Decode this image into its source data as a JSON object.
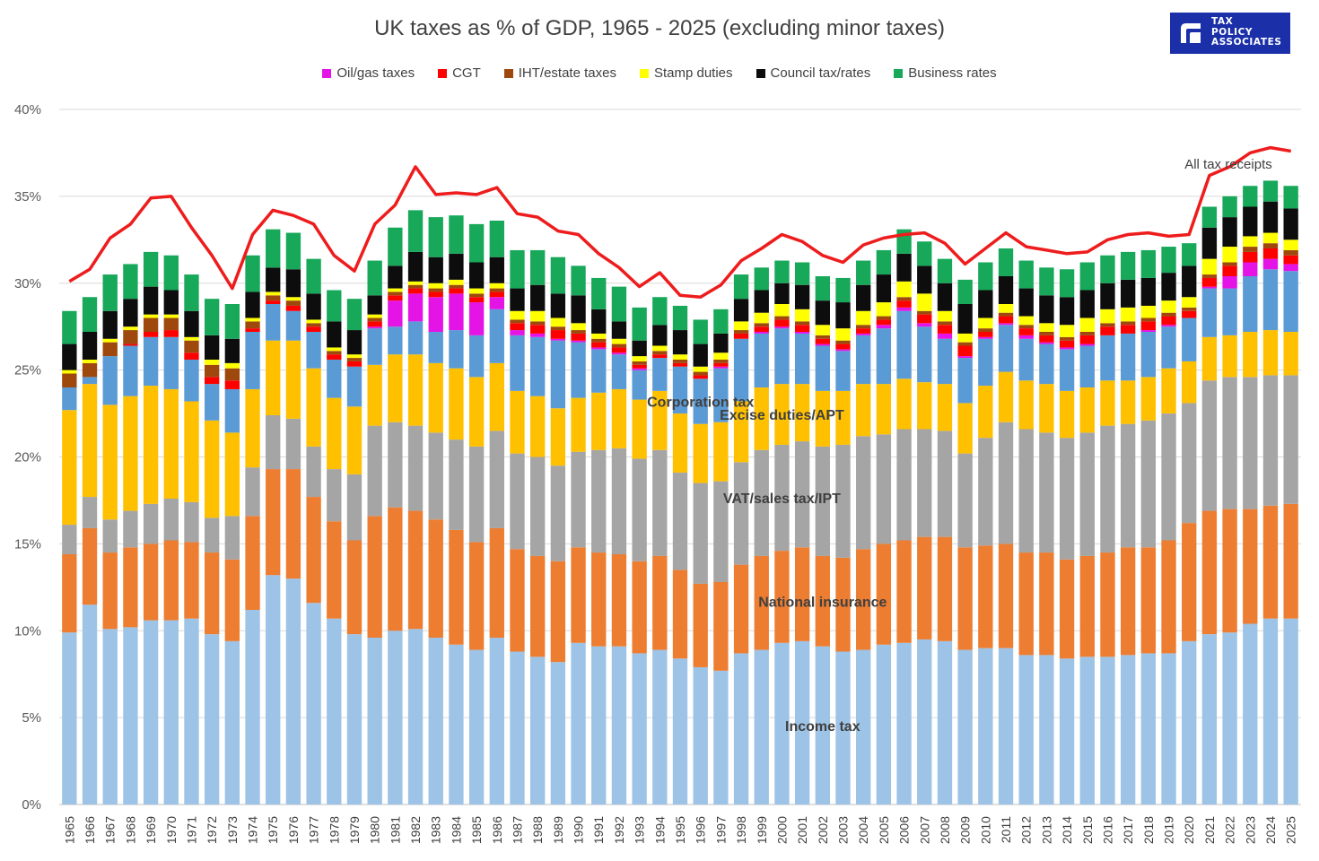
{
  "logo": {
    "lines": [
      "TAX",
      "POLICY",
      "ASSOCIATES"
    ]
  },
  "chart_data": {
    "type": "stacked-bar-with-line",
    "title": "UK taxes as % of GDP, 1965 - 2025 (excluding minor taxes)",
    "ylim": [
      0,
      40
    ],
    "yticks": [
      "0%",
      "5%",
      "10%",
      "15%",
      "20%",
      "25%",
      "30%",
      "35%",
      "40%"
    ],
    "grid": true,
    "legend_position": "top",
    "categories": [
      "1965",
      "1966",
      "1967",
      "1968",
      "1969",
      "1970",
      "1971",
      "1972",
      "1973",
      "1974",
      "1975",
      "1976",
      "1977",
      "1978",
      "1979",
      "1980",
      "1981",
      "1982",
      "1983",
      "1984",
      "1985",
      "1986",
      "1987",
      "1988",
      "1989",
      "1990",
      "1991",
      "1992",
      "1993",
      "1994",
      "1995",
      "1996",
      "1997",
      "1998",
      "1999",
      "2000",
      "2001",
      "2002",
      "2003",
      "2004",
      "2005",
      "2006",
      "2007",
      "2008",
      "2009",
      "2010",
      "2011",
      "2012",
      "2013",
      "2014",
      "2015",
      "2016",
      "2017",
      "2018",
      "2019",
      "2020",
      "2021",
      "2022",
      "2023",
      "2024",
      "2025"
    ],
    "series": [
      {
        "name": "Income tax",
        "color": "#9dc3e6",
        "in_legend": false,
        "values": [
          9.9,
          11.5,
          10.1,
          10.2,
          10.6,
          10.6,
          10.7,
          9.8,
          9.4,
          11.2,
          13.2,
          13.0,
          11.6,
          10.7,
          9.8,
          9.6,
          10.0,
          10.1,
          9.6,
          9.2,
          8.9,
          9.6,
          8.8,
          8.5,
          8.2,
          9.3,
          9.1,
          9.1,
          8.7,
          8.9,
          8.4,
          7.9,
          7.7,
          8.7,
          8.9,
          9.3,
          9.4,
          9.1,
          8.8,
          8.9,
          9.2,
          9.3,
          9.5,
          9.4,
          8.9,
          9.0,
          9.0,
          8.6,
          8.6,
          8.4,
          8.5,
          8.5,
          8.6,
          8.7,
          8.7,
          9.4,
          9.8,
          9.9,
          10.4,
          10.7,
          10.7
        ]
      },
      {
        "name": "National insurance",
        "color": "#ed7d31",
        "in_legend": false,
        "values": [
          4.5,
          4.4,
          4.4,
          4.6,
          4.4,
          4.6,
          4.4,
          4.7,
          4.7,
          5.4,
          6.1,
          6.3,
          6.1,
          5.6,
          5.4,
          7.0,
          7.1,
          6.8,
          6.8,
          6.6,
          6.2,
          6.3,
          5.9,
          5.8,
          5.8,
          5.5,
          5.4,
          5.3,
          5.3,
          5.4,
          5.1,
          4.8,
          5.1,
          5.1,
          5.4,
          5.3,
          5.4,
          5.2,
          5.4,
          5.8,
          5.8,
          5.9,
          5.9,
          6.0,
          5.9,
          5.9,
          6.0,
          5.9,
          5.9,
          5.7,
          5.8,
          6.0,
          6.2,
          6.1,
          6.5,
          6.8,
          7.1,
          7.1,
          6.6,
          6.5,
          6.6
        ]
      },
      {
        "name": "VAT/sales tax/IPT",
        "color": "#a5a5a5",
        "in_legend": false,
        "values": [
          1.7,
          1.8,
          1.9,
          2.1,
          2.3,
          2.4,
          2.3,
          2.0,
          2.5,
          2.8,
          3.1,
          2.9,
          2.9,
          3.0,
          3.8,
          5.2,
          4.9,
          4.9,
          5.0,
          5.2,
          5.5,
          5.6,
          5.5,
          5.7,
          5.5,
          5.5,
          5.9,
          6.1,
          5.9,
          6.1,
          5.6,
          5.8,
          5.8,
          5.9,
          6.1,
          6.1,
          6.1,
          6.3,
          6.5,
          6.5,
          6.3,
          6.4,
          6.2,
          6.1,
          5.4,
          6.2,
          7.0,
          7.1,
          6.9,
          7.0,
          7.1,
          7.3,
          7.1,
          7.3,
          7.3,
          6.9,
          7.5,
          7.6,
          7.6,
          7.5,
          7.4
        ]
      },
      {
        "name": "Excise duties/APT",
        "color": "#ffc000",
        "in_legend": false,
        "values": [
          6.6,
          6.5,
          6.6,
          6.6,
          6.8,
          6.3,
          5.8,
          5.6,
          4.8,
          4.5,
          4.3,
          4.5,
          4.5,
          4.1,
          3.9,
          3.5,
          3.9,
          4.1,
          4.0,
          4.1,
          4.0,
          3.9,
          3.6,
          3.5,
          3.3,
          3.1,
          3.3,
          3.4,
          3.4,
          3.4,
          3.4,
          3.4,
          3.4,
          3.5,
          3.6,
          3.5,
          3.3,
          3.2,
          3.1,
          3.0,
          2.9,
          2.9,
          2.7,
          2.7,
          2.9,
          3.0,
          2.9,
          2.8,
          2.8,
          2.7,
          2.6,
          2.6,
          2.5,
          2.5,
          2.6,
          2.4,
          2.5,
          2.4,
          2.6,
          2.6,
          2.5
        ]
      },
      {
        "name": "Corporation tax",
        "color": "#5b9bd5",
        "in_legend": false,
        "values": [
          1.3,
          0.4,
          2.8,
          2.9,
          2.8,
          3.0,
          2.4,
          2.1,
          2.5,
          3.3,
          2.1,
          1.7,
          2.1,
          2.2,
          2.3,
          2.1,
          1.6,
          1.9,
          1.8,
          2.2,
          2.4,
          3.1,
          3.2,
          3.4,
          3.9,
          3.2,
          2.5,
          2.0,
          1.7,
          1.9,
          2.7,
          2.6,
          3.1,
          3.6,
          3.1,
          3.2,
          2.9,
          2.6,
          2.3,
          2.8,
          3.2,
          3.9,
          3.2,
          2.6,
          2.6,
          2.7,
          2.7,
          2.4,
          2.3,
          2.4,
          2.4,
          2.6,
          2.7,
          2.6,
          2.4,
          2.5,
          2.8,
          2.7,
          3.2,
          3.5,
          3.5
        ]
      },
      {
        "name": "Oil/gas taxes",
        "color": "#e413e6",
        "in_legend": true,
        "values": [
          0,
          0,
          0,
          0,
          0,
          0,
          0,
          0,
          0,
          0,
          0,
          0,
          0,
          0,
          0,
          0.1,
          1.5,
          1.6,
          2.0,
          2.1,
          1.9,
          0.7,
          0.3,
          0.2,
          0.1,
          0.1,
          0.1,
          0.1,
          0.1,
          0,
          0,
          0,
          0.1,
          0,
          0.1,
          0.1,
          0.1,
          0.1,
          0.1,
          0.1,
          0.2,
          0.2,
          0.2,
          0.3,
          0.1,
          0.1,
          0.1,
          0.2,
          0.1,
          0.1,
          0.1,
          0,
          0,
          0.1,
          0.1,
          0,
          0.1,
          0.7,
          0.8,
          0.6,
          0.4
        ]
      },
      {
        "name": "CGT",
        "color": "#ff0000",
        "in_legend": true,
        "values": [
          0,
          0,
          0,
          0.1,
          0.3,
          0.4,
          0.4,
          0.4,
          0.5,
          0.2,
          0.2,
          0.3,
          0.3,
          0.3,
          0.3,
          0.3,
          0.3,
          0.3,
          0.3,
          0.3,
          0.3,
          0.3,
          0.4,
          0.5,
          0.5,
          0.4,
          0.3,
          0.3,
          0.2,
          0.2,
          0.2,
          0.2,
          0.2,
          0.3,
          0.3,
          0.4,
          0.4,
          0.3,
          0.3,
          0.3,
          0.3,
          0.4,
          0.5,
          0.5,
          0.6,
          0.3,
          0.4,
          0.4,
          0.4,
          0.4,
          0.5,
          0.5,
          0.5,
          0.5,
          0.5,
          0.4,
          0.5,
          0.6,
          0.6,
          0.6,
          0.5
        ]
      },
      {
        "name": "IHT/estate taxes",
        "color": "#9e480e",
        "in_legend": true,
        "values": [
          0.8,
          0.8,
          0.8,
          0.8,
          0.8,
          0.7,
          0.7,
          0.7,
          0.7,
          0.4,
          0.3,
          0.3,
          0.2,
          0.2,
          0.2,
          0.2,
          0.2,
          0.2,
          0.2,
          0.2,
          0.2,
          0.2,
          0.2,
          0.2,
          0.2,
          0.2,
          0.2,
          0.2,
          0.2,
          0.2,
          0.2,
          0.2,
          0.2,
          0.2,
          0.2,
          0.2,
          0.2,
          0.2,
          0.2,
          0.2,
          0.2,
          0.2,
          0.2,
          0.2,
          0.2,
          0.2,
          0.2,
          0.2,
          0.2,
          0.2,
          0.2,
          0.2,
          0.2,
          0.2,
          0.2,
          0.2,
          0.2,
          0.2,
          0.3,
          0.3,
          0.3
        ]
      },
      {
        "name": "Stamp duties",
        "color": "#ffff00",
        "in_legend": true,
        "values": [
          0.2,
          0.2,
          0.2,
          0.2,
          0.2,
          0.2,
          0.2,
          0.3,
          0.3,
          0.2,
          0.2,
          0.2,
          0.2,
          0.2,
          0.2,
          0.2,
          0.2,
          0.2,
          0.3,
          0.3,
          0.3,
          0.3,
          0.5,
          0.6,
          0.5,
          0.4,
          0.3,
          0.3,
          0.3,
          0.3,
          0.3,
          0.3,
          0.4,
          0.5,
          0.6,
          0.7,
          0.7,
          0.6,
          0.7,
          0.8,
          0.8,
          0.9,
          1.0,
          0.6,
          0.5,
          0.6,
          0.5,
          0.5,
          0.5,
          0.7,
          0.8,
          0.8,
          0.8,
          0.7,
          0.7,
          0.6,
          0.9,
          0.9,
          0.6,
          0.6,
          0.6
        ]
      },
      {
        "name": "Council tax/rates",
        "color": "#0d0d0d",
        "in_legend": true,
        "values": [
          1.5,
          1.6,
          1.6,
          1.6,
          1.6,
          1.4,
          1.5,
          1.4,
          1.4,
          1.5,
          1.4,
          1.6,
          1.5,
          1.5,
          1.4,
          1.1,
          1.3,
          1.7,
          1.5,
          1.5,
          1.5,
          1.5,
          1.3,
          1.5,
          1.4,
          1.6,
          1.4,
          1.0,
          0.9,
          1.2,
          1.4,
          1.3,
          1.1,
          1.3,
          1.3,
          1.2,
          1.4,
          1.4,
          1.5,
          1.5,
          1.6,
          1.6,
          1.6,
          1.6,
          1.7,
          1.6,
          1.6,
          1.6,
          1.6,
          1.6,
          1.6,
          1.5,
          1.6,
          1.6,
          1.6,
          1.8,
          1.8,
          1.7,
          1.7,
          1.8,
          1.8
        ]
      },
      {
        "name": "Business rates",
        "color": "#17a859",
        "in_legend": true,
        "values": [
          1.9,
          2.0,
          2.1,
          2.0,
          2.0,
          2.0,
          2.1,
          2.1,
          2.0,
          2.1,
          2.2,
          2.1,
          2.0,
          1.8,
          1.8,
          2.0,
          2.2,
          2.4,
          2.3,
          2.2,
          2.2,
          2.1,
          2.2,
          2.0,
          2.1,
          1.7,
          1.8,
          2.0,
          1.9,
          1.6,
          1.4,
          1.4,
          1.4,
          1.4,
          1.3,
          1.3,
          1.3,
          1.4,
          1.4,
          1.4,
          1.4,
          1.4,
          1.4,
          1.4,
          1.4,
          1.6,
          1.6,
          1.6,
          1.6,
          1.6,
          1.6,
          1.6,
          1.6,
          1.6,
          1.5,
          1.3,
          1.2,
          1.2,
          1.2,
          1.2,
          1.3
        ]
      }
    ],
    "total_line": {
      "name": "All tax receipts",
      "color": "#ee1c1c",
      "values": [
        30.1,
        30.8,
        32.6,
        33.4,
        34.9,
        35.0,
        33.2,
        31.6,
        29.7,
        32.8,
        34.2,
        33.9,
        33.4,
        31.6,
        30.7,
        33.4,
        34.5,
        36.7,
        35.1,
        35.2,
        35.1,
        35.5,
        34.0,
        33.8,
        33.0,
        32.8,
        31.7,
        30.9,
        29.8,
        30.6,
        29.3,
        29.2,
        29.9,
        31.3,
        32.0,
        32.8,
        32.4,
        31.6,
        31.2,
        32.2,
        32.6,
        32.8,
        32.9,
        32.3,
        31.1,
        32.0,
        32.9,
        32.1,
        31.9,
        31.7,
        31.8,
        32.5,
        32.8,
        32.9,
        32.7,
        32.8,
        36.2,
        36.7,
        37.5,
        37.8,
        37.6
      ]
    },
    "inline_labels": [
      {
        "text": "Corporation tax",
        "series": "Corporation tax",
        "year": "1996"
      },
      {
        "text": "Excise duties/APT",
        "series": "Excise duties/APT",
        "year": "2000"
      },
      {
        "text": "VAT/sales tax/IPT",
        "series": "VAT/sales tax/IPT",
        "year": "2000"
      },
      {
        "text": "National insurance",
        "series": "National insurance",
        "year": "2002"
      },
      {
        "text": "Income tax",
        "series": "Income tax",
        "year": "2002"
      }
    ],
    "line_annotation": {
      "text": "All tax receipts",
      "year": "2020"
    }
  }
}
